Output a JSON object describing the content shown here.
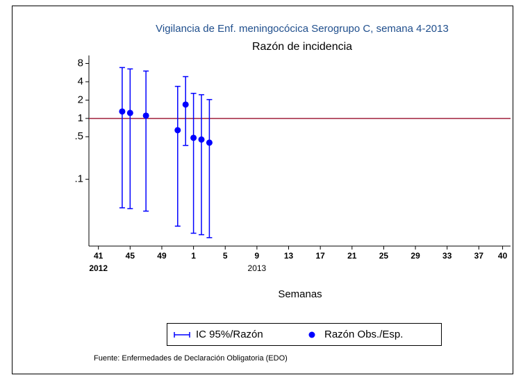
{
  "chart_data": {
    "type": "errorbar",
    "title": "Vigilancia de Enf. meningocócica Serogrupo C, semana 4-2013",
    "subtitle": "Razón de incidencia",
    "x_label": "Semanas",
    "source": "Fuente: Enfermedades de Declaración Obligatoria (EDO)",
    "x": [
      44,
      45,
      47,
      51,
      52,
      53,
      54,
      55
    ],
    "series": [
      {
        "name": "IC 95%/Razón",
        "color": "#0000ff",
        "lower": [
          0.034,
          0.033,
          0.03,
          0.017,
          0.36,
          0.013,
          0.0123,
          0.011
        ],
        "upper": [
          6.85,
          6.5,
          6.0,
          3.36,
          4.86,
          2.58,
          2.45,
          2.04
        ]
      },
      {
        "name": "Razón Obs./Esp.",
        "color": "#0000ff",
        "values": [
          1.3,
          1.23,
          1.11,
          0.64,
          1.69,
          0.48,
          0.45,
          0.4
        ]
      }
    ],
    "reference_line": {
      "value": 1,
      "color": "#a0203c"
    },
    "xlim": [
      39.8,
      93
    ],
    "xticks": [
      41,
      45,
      49,
      {
        "value": 53,
        "label": "1"
      },
      {
        "value": 57,
        "label": "5"
      },
      {
        "value": 61,
        "label": "9"
      },
      {
        "value": 65,
        "label": "13"
      },
      {
        "value": 69,
        "label": "17"
      },
      {
        "value": 73,
        "label": "21"
      },
      {
        "value": 77,
        "label": "25"
      },
      {
        "value": 81,
        "label": "29"
      },
      {
        "value": 85,
        "label": "33"
      },
      {
        "value": 89,
        "label": "37"
      },
      {
        "value": 92,
        "label": "40"
      }
    ],
    "year_labels": [
      {
        "value": 41,
        "label": "2012"
      },
      {
        "value": 61,
        "label": "2013"
      }
    ],
    "ylim": [
      0.008,
      10
    ],
    "yticks": [
      8,
      4,
      2,
      1,
      {
        "value": 0.5,
        "label": ".5"
      },
      {
        "value": 0.1,
        "label": ".1"
      }
    ],
    "log_y": true,
    "title_color": "#1f4e8c"
  }
}
